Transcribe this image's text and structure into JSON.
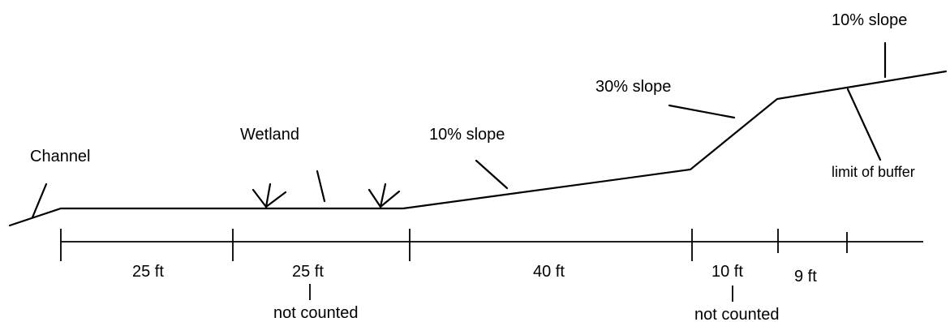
{
  "labels": {
    "channel": "Channel",
    "wetland": "Wetland",
    "slope_lower": "10% slope",
    "slope_mid": "30% slope",
    "slope_upper": "10% slope",
    "limit_of_buffer": "limit of buffer"
  },
  "segments": [
    {
      "length": "25 ft",
      "note": ""
    },
    {
      "length": "25 ft",
      "note": "not counted"
    },
    {
      "length": "40 ft",
      "note": ""
    },
    {
      "length": "10 ft",
      "note": "not counted"
    },
    {
      "length": "9 ft",
      "note": ""
    }
  ]
}
